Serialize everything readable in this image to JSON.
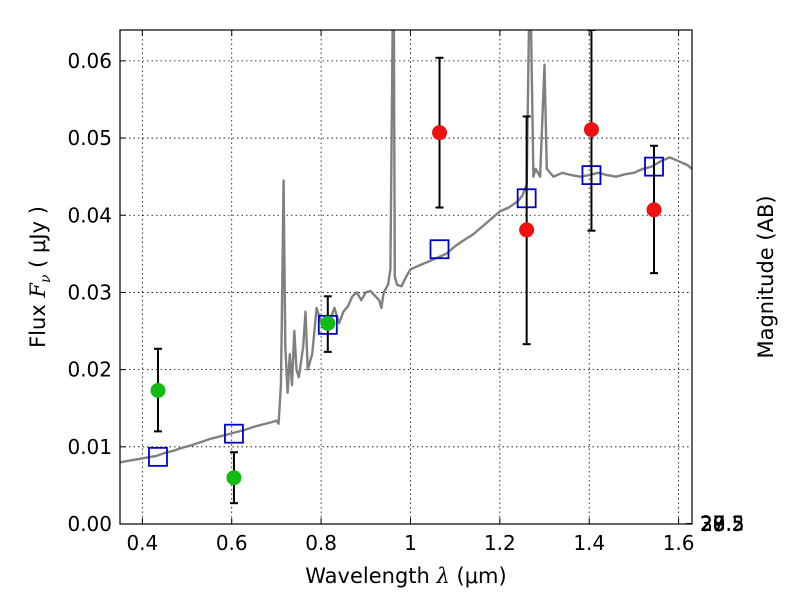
{
  "chart_data": {
    "type": "scatter",
    "xlabel": {
      "text": "Wavelength ",
      "symbol": "λ",
      "unit": " (μm)"
    },
    "ylabel": {
      "text": "Flux ",
      "symbol": "F",
      "subscript": "ν",
      "unit": " ( μJy )"
    },
    "y2label": "Magnitude (AB)",
    "xlim": [
      0.35,
      1.63
    ],
    "ylim": [
      0.0,
      0.064
    ],
    "grid": true,
    "x_ticks": [
      {
        "value": 0.4,
        "label": "0.4"
      },
      {
        "value": 0.6,
        "label": "0.6"
      },
      {
        "value": 0.8,
        "label": "0.8"
      },
      {
        "value": 1.0,
        "label": "1"
      },
      {
        "value": 1.2,
        "label": "1.2"
      },
      {
        "value": 1.4,
        "label": "1.4"
      },
      {
        "value": 1.6,
        "label": "1.6"
      }
    ],
    "y_ticks": [
      {
        "value": 0.0,
        "label": "0.00"
      },
      {
        "value": 0.01,
        "label": "0.01"
      },
      {
        "value": 0.02,
        "label": "0.02"
      },
      {
        "value": 0.03,
        "label": "0.03"
      },
      {
        "value": 0.04,
        "label": "0.04"
      },
      {
        "value": 0.05,
        "label": "0.05"
      },
      {
        "value": 0.06,
        "label": "0.06"
      }
    ],
    "y2_ticks": [
      {
        "mag": 27,
        "label": "27"
      },
      {
        "mag": 27.2,
        "label": "27.2"
      },
      {
        "mag": 27.5,
        "label": "27.5"
      },
      {
        "mag": 28,
        "label": "28"
      },
      {
        "mag": 28.5,
        "label": "28.5"
      },
      {
        "mag": 29,
        "label": "29"
      },
      {
        "mag": 30,
        "label": "30"
      }
    ],
    "series": [
      {
        "kind": "line",
        "color": "#808080",
        "points": [
          [
            0.35,
            0.008
          ],
          [
            0.37,
            0.0082
          ],
          [
            0.39,
            0.0084
          ],
          [
            0.41,
            0.0086
          ],
          [
            0.43,
            0.0088
          ],
          [
            0.45,
            0.0092
          ],
          [
            0.47,
            0.0095
          ],
          [
            0.49,
            0.0099
          ],
          [
            0.51,
            0.0102
          ],
          [
            0.53,
            0.0106
          ],
          [
            0.55,
            0.011
          ],
          [
            0.57,
            0.0113
          ],
          [
            0.59,
            0.0116
          ],
          [
            0.61,
            0.0119
          ],
          [
            0.63,
            0.0122
          ],
          [
            0.65,
            0.0126
          ],
          [
            0.67,
            0.0129
          ],
          [
            0.69,
            0.0132
          ],
          [
            0.7,
            0.0134
          ],
          [
            0.705,
            0.013
          ],
          [
            0.71,
            0.018
          ],
          [
            0.712,
            0.026
          ],
          [
            0.716,
            0.0445
          ],
          [
            0.72,
            0.023
          ],
          [
            0.725,
            0.017
          ],
          [
            0.73,
            0.022
          ],
          [
            0.735,
            0.018
          ],
          [
            0.74,
            0.025
          ],
          [
            0.745,
            0.02
          ],
          [
            0.75,
            0.019
          ],
          [
            0.76,
            0.023
          ],
          [
            0.765,
            0.0275
          ],
          [
            0.77,
            0.02
          ],
          [
            0.78,
            0.022
          ],
          [
            0.785,
            0.025
          ],
          [
            0.79,
            0.028
          ],
          [
            0.8,
            0.0262
          ],
          [
            0.81,
            0.0268
          ],
          [
            0.82,
            0.0265
          ],
          [
            0.83,
            0.028
          ],
          [
            0.84,
            0.026
          ],
          [
            0.85,
            0.0275
          ],
          [
            0.86,
            0.0282
          ],
          [
            0.87,
            0.0295
          ],
          [
            0.88,
            0.03
          ],
          [
            0.89,
            0.029
          ],
          [
            0.9,
            0.03
          ],
          [
            0.91,
            0.0302
          ],
          [
            0.92,
            0.0296
          ],
          [
            0.93,
            0.029
          ],
          [
            0.935,
            0.028
          ],
          [
            0.94,
            0.03
          ],
          [
            0.95,
            0.031
          ],
          [
            0.955,
            0.033
          ],
          [
            0.96,
            0.064
          ],
          [
            0.963,
            0.064
          ],
          [
            0.965,
            0.032
          ],
          [
            0.97,
            0.031
          ],
          [
            0.98,
            0.0308
          ],
          [
            0.99,
            0.032
          ],
          [
            1.0,
            0.033
          ],
          [
            1.02,
            0.0335
          ],
          [
            1.04,
            0.034
          ],
          [
            1.06,
            0.0345
          ],
          [
            1.08,
            0.035
          ],
          [
            1.1,
            0.036
          ],
          [
            1.12,
            0.0368
          ],
          [
            1.14,
            0.0375
          ],
          [
            1.16,
            0.0385
          ],
          [
            1.18,
            0.0395
          ],
          [
            1.2,
            0.0405
          ],
          [
            1.22,
            0.041
          ],
          [
            1.24,
            0.0418
          ],
          [
            1.25,
            0.0425
          ],
          [
            1.26,
            0.044
          ],
          [
            1.265,
            0.064
          ],
          [
            1.27,
            0.064
          ],
          [
            1.275,
            0.045
          ],
          [
            1.28,
            0.046
          ],
          [
            1.29,
            0.045
          ],
          [
            1.3,
            0.0595
          ],
          [
            1.305,
            0.046
          ],
          [
            1.32,
            0.045
          ],
          [
            1.34,
            0.0455
          ],
          [
            1.36,
            0.0452
          ],
          [
            1.38,
            0.045
          ],
          [
            1.4,
            0.0452
          ],
          [
            1.42,
            0.0455
          ],
          [
            1.44,
            0.0452
          ],
          [
            1.46,
            0.045
          ],
          [
            1.48,
            0.0453
          ],
          [
            1.5,
            0.0455
          ],
          [
            1.52,
            0.046
          ],
          [
            1.54,
            0.0463
          ],
          [
            1.56,
            0.047
          ],
          [
            1.58,
            0.0475
          ],
          [
            1.6,
            0.047
          ],
          [
            1.62,
            0.0465
          ],
          [
            1.63,
            0.046
          ]
        ]
      },
      {
        "kind": "markers",
        "marker": "square",
        "color": "#0000cc",
        "points": [
          [
            0.435,
            0.0087
          ],
          [
            0.605,
            0.0117
          ],
          [
            0.815,
            0.0258
          ],
          [
            1.065,
            0.0356
          ],
          [
            1.26,
            0.0422
          ],
          [
            1.405,
            0.0452
          ],
          [
            1.545,
            0.0463
          ]
        ]
      },
      {
        "kind": "errorbar",
        "marker": "circle",
        "color": "#11bb11",
        "points": [
          {
            "x": 0.435,
            "y": 0.0173,
            "lo": 0.012,
            "hi": 0.0227
          },
          {
            "x": 0.605,
            "y": 0.006,
            "lo": 0.0027,
            "hi": 0.0093
          },
          {
            "x": 0.815,
            "y": 0.026,
            "lo": 0.0223,
            "hi": 0.0295
          }
        ]
      },
      {
        "kind": "errorbar",
        "marker": "circle",
        "color": "#ee1111",
        "points": [
          {
            "x": 1.065,
            "y": 0.0507,
            "lo": 0.041,
            "hi": 0.0604
          },
          {
            "x": 1.26,
            "y": 0.0381,
            "lo": 0.0233,
            "hi": 0.0528
          },
          {
            "x": 1.405,
            "y": 0.0511,
            "lo": 0.038,
            "hi": 0.064
          },
          {
            "x": 1.545,
            "y": 0.0407,
            "lo": 0.0325,
            "hi": 0.049
          }
        ]
      }
    ]
  }
}
